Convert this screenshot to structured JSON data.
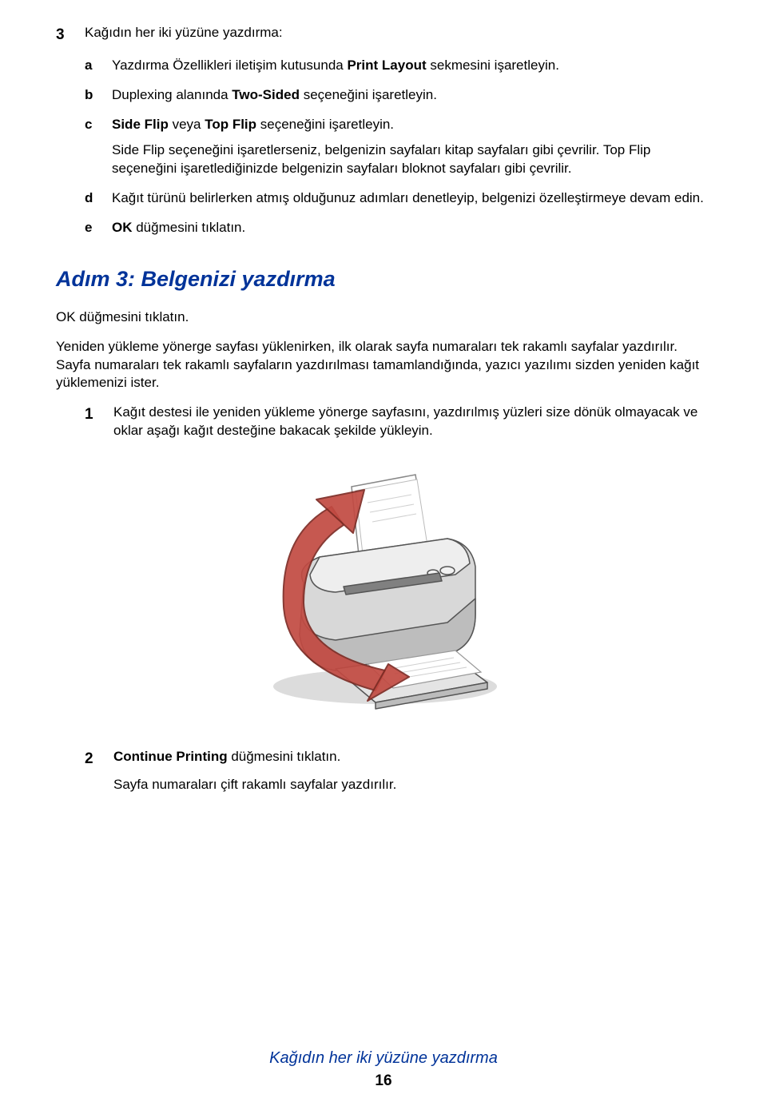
{
  "colors": {
    "heading": "#003399",
    "text": "#000000",
    "arrow_fill": "#cc3333",
    "arrow_stroke": "#8a1f1f",
    "printer_body_light": "#e8e8e8",
    "printer_body_mid": "#cfcfcf",
    "printer_body_dark": "#9e9e9e",
    "printer_shadow": "#666666",
    "paper": "#ffffff",
    "paper_line": "#bdbdbd"
  },
  "fonts": {
    "body_size_pt": 12,
    "heading_size_pt": 20,
    "marker_size_pt": 14
  },
  "step3": {
    "marker": "3",
    "text": "Kağıdın her iki yüzüne yazdırma:",
    "items": [
      {
        "marker": "a",
        "html": "Yazdırma Özellikleri iletişim kutusunda <b>Print Layout</b> sekmesini işaretleyin."
      },
      {
        "marker": "b",
        "html": "Duplexing alanında <b>Two-Sided</b> seçeneğini işaretleyin."
      },
      {
        "marker": "c",
        "html": "<b>Side Flip</b> veya <b>Top Flip</b> seçeneğini işaretleyin.",
        "extra": "Side Flip seçeneğini işaretlerseniz, belgenizin sayfaları kitap sayfaları gibi çevrilir. Top Flip seçeneğini işaretlediğinizde belgenizin sayfaları bloknot sayfaları gibi çevrilir."
      },
      {
        "marker": "d",
        "html": "Kağıt türünü belirlerken atmış olduğunuz adımları denetleyip, belgenizi özelleştirmeye devam edin."
      },
      {
        "marker": "e",
        "html": "<b>OK</b> düğmesini tıklatın."
      }
    ]
  },
  "heading": "Adım 3: Belgenizi yazdırma",
  "para1": "OK düğmesini tıklatın.",
  "para2": "Yeniden yükleme yönerge sayfası yüklenirken, ilk olarak sayfa numaraları tek rakamlı sayfalar yazdırılır. Sayfa numaraları tek rakamlı sayfaların yazdırılması tamamlandığında, yazıcı yazılımı sizden yeniden kağıt yüklemenizi ister.",
  "numbered": [
    {
      "marker": "1",
      "html": "Kağıt destesi ile yeniden yükleme yönerge sayfasını, yazdırılmış yüzleri size dönük olmayacak ve oklar aşağı kağıt desteğine bakacak şekilde yükleyin."
    },
    {
      "marker": "2",
      "html": "<b>Continue Printing</b> düğmesini tıklatın.",
      "extra": "Sayfa numaraları çift rakamlı sayfalar yazdırılır."
    }
  ],
  "footer": {
    "title": "Kağıdın her iki yüzüne yazdırma",
    "page": "16"
  }
}
